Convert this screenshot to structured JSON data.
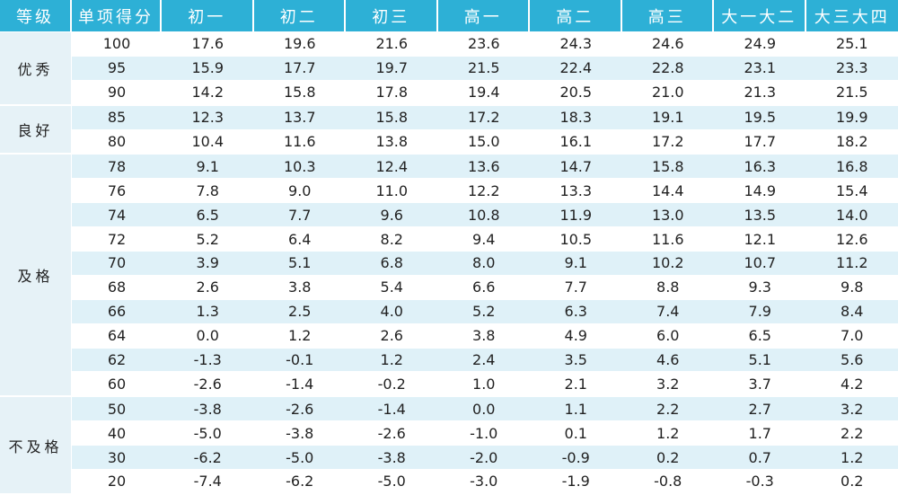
{
  "table": {
    "headers": [
      "等级",
      "单项得分",
      "初一",
      "初二",
      "初三",
      "高一",
      "高二",
      "高三",
      "大一大二",
      "大三大四"
    ],
    "groups": [
      {
        "grade": "优秀",
        "rows": [
          [
            "100",
            "17.6",
            "19.6",
            "21.6",
            "23.6",
            "24.3",
            "24.6",
            "24.9",
            "25.1"
          ],
          [
            "95",
            "15.9",
            "17.7",
            "19.7",
            "21.5",
            "22.4",
            "22.8",
            "23.1",
            "23.3"
          ],
          [
            "90",
            "14.2",
            "15.8",
            "17.8",
            "19.4",
            "20.5",
            "21.0",
            "21.3",
            "21.5"
          ]
        ]
      },
      {
        "grade": "良好",
        "rows": [
          [
            "85",
            "12.3",
            "13.7",
            "15.8",
            "17.2",
            "18.3",
            "19.1",
            "19.5",
            "19.9"
          ],
          [
            "80",
            "10.4",
            "11.6",
            "13.8",
            "15.0",
            "16.1",
            "17.2",
            "17.7",
            "18.2"
          ]
        ]
      },
      {
        "grade": "及格",
        "rows": [
          [
            "78",
            "9.1",
            "10.3",
            "12.4",
            "13.6",
            "14.7",
            "15.8",
            "16.3",
            "16.8"
          ],
          [
            "76",
            "7.8",
            "9.0",
            "11.0",
            "12.2",
            "13.3",
            "14.4",
            "14.9",
            "15.4"
          ],
          [
            "74",
            "6.5",
            "7.7",
            "9.6",
            "10.8",
            "11.9",
            "13.0",
            "13.5",
            "14.0"
          ],
          [
            "72",
            "5.2",
            "6.4",
            "8.2",
            "9.4",
            "10.5",
            "11.6",
            "12.1",
            "12.6"
          ],
          [
            "70",
            "3.9",
            "5.1",
            "6.8",
            "8.0",
            "9.1",
            "10.2",
            "10.7",
            "11.2"
          ],
          [
            "68",
            "2.6",
            "3.8",
            "5.4",
            "6.6",
            "7.7",
            "8.8",
            "9.3",
            "9.8"
          ],
          [
            "66",
            "1.3",
            "2.5",
            "4.0",
            "5.2",
            "6.3",
            "7.4",
            "7.9",
            "8.4"
          ],
          [
            "64",
            "0.0",
            "1.2",
            "2.6",
            "3.8",
            "4.9",
            "6.0",
            "6.5",
            "7.0"
          ],
          [
            "62",
            "-1.3",
            "-0.1",
            "1.2",
            "2.4",
            "3.5",
            "4.6",
            "5.1",
            "5.6"
          ],
          [
            "60",
            "-2.6",
            "-1.4",
            "-0.2",
            "1.0",
            "2.1",
            "3.2",
            "3.7",
            "4.2"
          ]
        ]
      },
      {
        "grade": "不及格",
        "rows": [
          [
            "50",
            "-3.8",
            "-2.6",
            "-1.4",
            "0.0",
            "1.1",
            "2.2",
            "2.7",
            "3.2"
          ],
          [
            "40",
            "-5.0",
            "-3.8",
            "-2.6",
            "-1.0",
            "0.1",
            "1.2",
            "1.7",
            "2.2"
          ],
          [
            "30",
            "-6.2",
            "-5.0",
            "-3.8",
            "-2.0",
            "-0.9",
            "0.2",
            "0.7",
            "1.2"
          ],
          [
            "20",
            "-7.4",
            "-6.2",
            "-5.0",
            "-3.0",
            "-1.9",
            "-0.8",
            "-0.3",
            "0.2"
          ]
        ]
      }
    ]
  }
}
